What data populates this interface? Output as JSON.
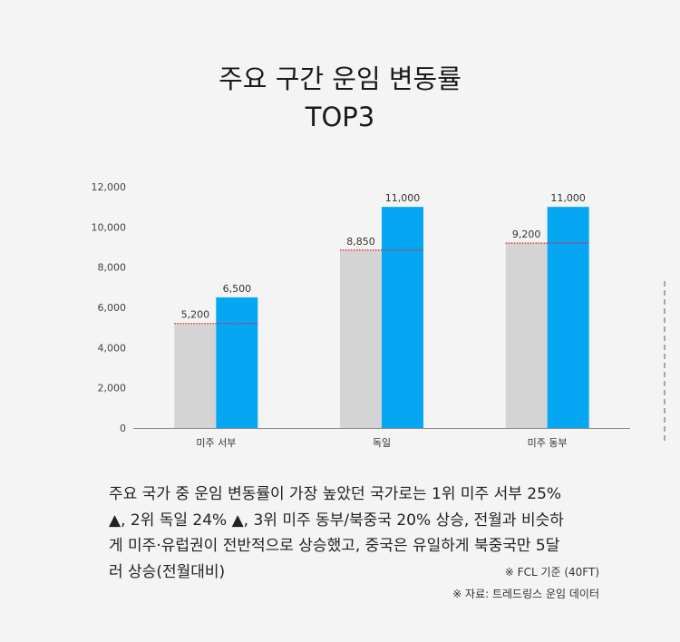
{
  "title": {
    "line1": "주요 구간 운임 변동률",
    "line2": "TOP3"
  },
  "chart_data": {
    "type": "bar",
    "categories": [
      "미주 서부",
      "독일",
      "미주 동부"
    ],
    "series": [
      {
        "values": [
          5200,
          8850,
          9200
        ],
        "color": "#d4d4d4",
        "labels": [
          "5,200",
          "8,850",
          "9,200"
        ]
      },
      {
        "values": [
          6500,
          11000,
          11000
        ],
        "color": "#05a7f3",
        "labels": [
          "6,500",
          "11,000",
          "11,000"
        ]
      }
    ],
    "yticks": [
      "0",
      "2,000",
      "4,000",
      "6,000",
      "8,000",
      "10,000",
      "12,000"
    ],
    "ylim": [
      0,
      12000
    ],
    "marker_color": "#e0242f"
  },
  "description": {
    "lines": [
      "주요 국가 중 운임 변동률이 가장 높았던 국가로는 1위 미주 서부 25%",
      "▲, 2위 독일 24% ▲, 3위 미주 동부/북중국 20% 상승, 전월과 비슷하",
      "게 미주·유럽권이 전반적으로 상승했고, 중국은 유일하게 북중국만 5달",
      "러 상승(전월대비)"
    ]
  },
  "notes": {
    "basis": "※ FCL 기준 (40FT)",
    "source": "※ 자료: 트레드링스 운임 데이터"
  }
}
